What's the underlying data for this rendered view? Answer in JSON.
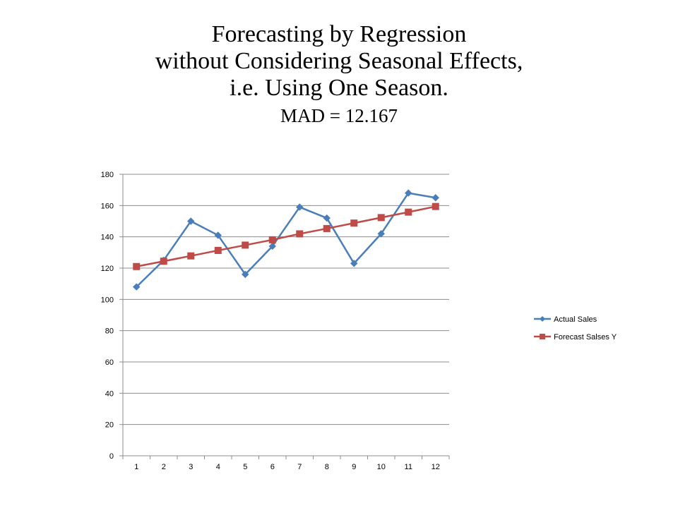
{
  "slide": {
    "title_lines": [
      "Forecasting by Regression",
      "without Considering Seasonal Effects,",
      "i.e. Using One Season."
    ],
    "subtitle": "MAD = 12.167"
  },
  "chart_data": {
    "type": "line",
    "title": "",
    "xlabel": "",
    "ylabel": "",
    "x": [
      1,
      2,
      3,
      4,
      5,
      6,
      7,
      8,
      9,
      10,
      11,
      12
    ],
    "ylim": [
      0,
      180
    ],
    "yticks": [
      0,
      20,
      40,
      60,
      80,
      100,
      120,
      140,
      160,
      180
    ],
    "grid": "horizontal",
    "legend_position": "right",
    "series": [
      {
        "name": "Actual Sales",
        "color": "#4a7ebb",
        "marker": "diamond",
        "values": [
          108,
          125,
          150,
          141,
          116,
          134,
          159,
          152,
          123,
          142,
          168,
          165
        ]
      },
      {
        "name": "Forecast Salses Y",
        "color": "#be4b48",
        "marker": "square",
        "values": [
          121,
          124.4,
          127.8,
          131.3,
          134.7,
          138.1,
          141.9,
          145.3,
          148.8,
          152.3,
          155.8,
          159.4
        ]
      }
    ]
  }
}
